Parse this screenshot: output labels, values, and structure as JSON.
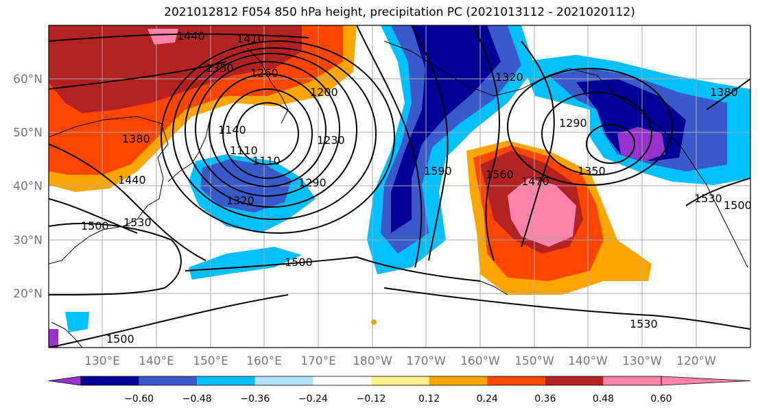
{
  "title": "2021012812 F054 850 hPa height, precipitation PC (2021013112 - 2021020112)",
  "map": {
    "lat_labels": [
      "20°N",
      "30°N",
      "40°N",
      "50°N",
      "60°N"
    ],
    "lon_labels": [
      "130°E",
      "140°E",
      "150°E",
      "160°E",
      "170°E",
      "180°W",
      "170°W",
      "160°W",
      "150°W",
      "140°W",
      "130°W",
      "120°W"
    ],
    "contour_labels": [
      "1440",
      "1410",
      "1350",
      "1260",
      "1200",
      "1140",
      "1110",
      "1110",
      "1230",
      "1290",
      "1320",
      "1380",
      "1440",
      "1500",
      "1530",
      "1500",
      "1500",
      "1320",
      "1590",
      "1560",
      "1470",
      "1290",
      "1350",
      "1380",
      "1530",
      "1530",
      "1500"
    ]
  },
  "colorbar": {
    "colors": [
      "#9932cc",
      "#000096",
      "#3a5acc",
      "#00bfff",
      "#b0e2ff",
      "#ffffff",
      "#ffec8b",
      "#ffa500",
      "#ff4500",
      "#b22222",
      "#ff82ab"
    ],
    "tick_labels": [
      "−0.60",
      "−0.48",
      "−0.36",
      "−0.24",
      "−0.12",
      "0.12",
      "0.24",
      "0.36",
      "0.48",
      "0.60"
    ]
  }
}
